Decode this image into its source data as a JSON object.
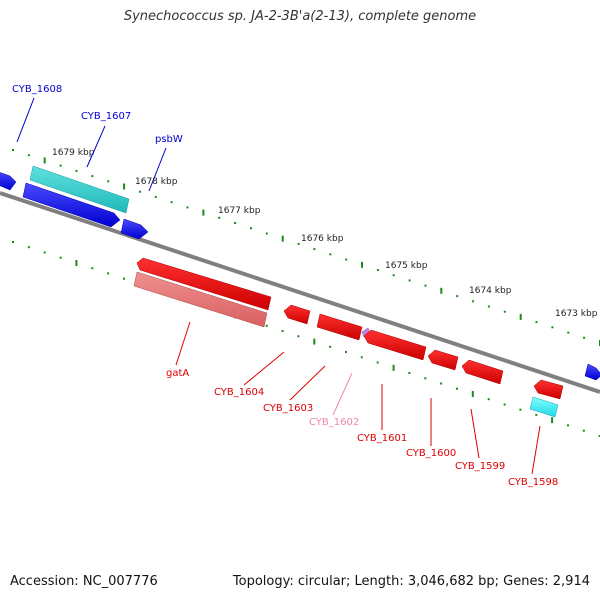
{
  "title": "Synechococcus sp. JA-2-3B'a(2-13), complete genome",
  "footer": {
    "accession": "Accession: NC_007776",
    "summary": "Topology: circular; Length: 3,046,682 bp; Genes: 2,914"
  },
  "scale_ticks": [
    {
      "label": "1679 kbp"
    },
    {
      "label": "1678 kbp"
    },
    {
      "label": "1677 kbp"
    },
    {
      "label": "1676 kbp"
    },
    {
      "label": "1675 kbp"
    },
    {
      "label": "1674 kbp"
    },
    {
      "label": "1673 kbp"
    }
  ],
  "genes": [
    {
      "label": "CYB_1608",
      "strand": "forward",
      "color": "#1a1aff"
    },
    {
      "label": "CYB_1607",
      "strand": "forward",
      "color": "#1a1aff"
    },
    {
      "label": "psbW",
      "strand": "forward",
      "color": "#1a1aff"
    },
    {
      "label": "gatA",
      "strand": "reverse",
      "color": "#dd0000"
    },
    {
      "label": "CYB_1604",
      "strand": "reverse",
      "color": "#dd0000"
    },
    {
      "label": "CYB_1603",
      "strand": "reverse",
      "color": "#dd0000"
    },
    {
      "label": "CYB_1602",
      "strand": "reverse",
      "color": "#ee88aa"
    },
    {
      "label": "CYB_1601",
      "strand": "reverse",
      "color": "#dd0000"
    },
    {
      "label": "CYB_1600",
      "strand": "reverse",
      "color": "#dd0000"
    },
    {
      "label": "CYB_1599",
      "strand": "reverse",
      "color": "#dd0000"
    },
    {
      "label": "CYB_1598",
      "strand": "reverse",
      "color": "#dd0000"
    }
  ],
  "colors": {
    "forward_gene": "#1a1aff",
    "forward_cds": "#33cccc",
    "reverse_gene": "#ee0000",
    "reverse_cds": "#ee7777",
    "backbone": "#808080",
    "tick": "#1a8a1a"
  }
}
